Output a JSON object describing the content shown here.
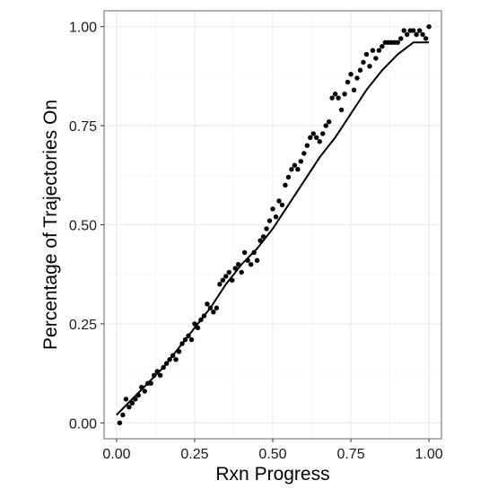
{
  "chart_data": {
    "type": "scatter",
    "title": "",
    "xlabel": "Rxn Progress",
    "ylabel": "Percentage of Trajectories On",
    "xlim": [
      -0.04,
      1.04
    ],
    "ylim": [
      -0.04,
      1.04
    ],
    "x_ticks": [
      0.0,
      0.25,
      0.5,
      0.75,
      1.0
    ],
    "y_ticks": [
      0.0,
      0.25,
      0.5,
      0.75,
      1.0
    ],
    "x_tick_labels": [
      "0.00",
      "0.25",
      "0.50",
      "0.75",
      "1.00"
    ],
    "y_tick_labels": [
      "0.00",
      "0.25",
      "0.50",
      "0.75",
      "1.00"
    ],
    "grid": true,
    "legend": "none",
    "series": [
      {
        "kind": "points",
        "x": [
          0.01,
          0.02,
          0.03,
          0.04,
          0.05,
          0.06,
          0.07,
          0.08,
          0.09,
          0.1,
          0.11,
          0.12,
          0.13,
          0.14,
          0.15,
          0.16,
          0.17,
          0.18,
          0.19,
          0.2,
          0.21,
          0.22,
          0.23,
          0.24,
          0.25,
          0.26,
          0.27,
          0.28,
          0.29,
          0.3,
          0.31,
          0.32,
          0.33,
          0.34,
          0.35,
          0.36,
          0.37,
          0.38,
          0.39,
          0.4,
          0.41,
          0.42,
          0.43,
          0.44,
          0.45,
          0.46,
          0.47,
          0.48,
          0.49,
          0.5,
          0.51,
          0.52,
          0.53,
          0.54,
          0.55,
          0.56,
          0.57,
          0.58,
          0.59,
          0.6,
          0.61,
          0.62,
          0.63,
          0.64,
          0.65,
          0.66,
          0.67,
          0.68,
          0.69,
          0.7,
          0.71,
          0.72,
          0.73,
          0.74,
          0.75,
          0.76,
          0.77,
          0.78,
          0.79,
          0.8,
          0.81,
          0.82,
          0.83,
          0.84,
          0.85,
          0.86,
          0.87,
          0.88,
          0.89,
          0.9,
          0.91,
          0.92,
          0.93,
          0.94,
          0.95,
          0.96,
          0.97,
          0.98,
          0.99,
          1.0
        ],
        "y": [
          0.0,
          0.02,
          0.06,
          0.04,
          0.05,
          0.06,
          0.07,
          0.09,
          0.08,
          0.1,
          0.1,
          0.12,
          0.13,
          0.12,
          0.14,
          0.15,
          0.16,
          0.17,
          0.16,
          0.18,
          0.2,
          0.21,
          0.22,
          0.21,
          0.25,
          0.24,
          0.26,
          0.27,
          0.3,
          0.29,
          0.28,
          0.29,
          0.35,
          0.36,
          0.37,
          0.38,
          0.36,
          0.39,
          0.4,
          0.38,
          0.43,
          0.41,
          0.4,
          0.43,
          0.41,
          0.46,
          0.47,
          0.49,
          0.51,
          0.54,
          0.52,
          0.56,
          0.55,
          0.6,
          0.62,
          0.64,
          0.65,
          0.64,
          0.66,
          0.68,
          0.7,
          0.72,
          0.73,
          0.72,
          0.71,
          0.73,
          0.75,
          0.76,
          0.82,
          0.83,
          0.82,
          0.79,
          0.83,
          0.86,
          0.88,
          0.84,
          0.87,
          0.89,
          0.91,
          0.93,
          0.9,
          0.94,
          0.92,
          0.94,
          0.95,
          0.96,
          0.96,
          0.96,
          0.96,
          0.96,
          0.97,
          0.99,
          0.98,
          0.99,
          0.99,
          0.98,
          0.99,
          0.98,
          0.97,
          1.0
        ]
      },
      {
        "kind": "smooth-line",
        "x": [
          0.0,
          0.05,
          0.1,
          0.15,
          0.2,
          0.25,
          0.3,
          0.35,
          0.4,
          0.45,
          0.5,
          0.55,
          0.6,
          0.65,
          0.7,
          0.75,
          0.8,
          0.85,
          0.9,
          0.95,
          1.0
        ],
        "y": [
          0.02,
          0.06,
          0.1,
          0.14,
          0.19,
          0.24,
          0.29,
          0.35,
          0.4,
          0.44,
          0.49,
          0.55,
          0.61,
          0.67,
          0.72,
          0.78,
          0.84,
          0.89,
          0.93,
          0.96,
          0.96
        ]
      }
    ],
    "colors": {
      "points": "#000000",
      "line": "#000000",
      "grid_major": "#ebebeb",
      "grid_minor": "#f5f5f5",
      "panel_border": "#7f7f7f"
    }
  }
}
